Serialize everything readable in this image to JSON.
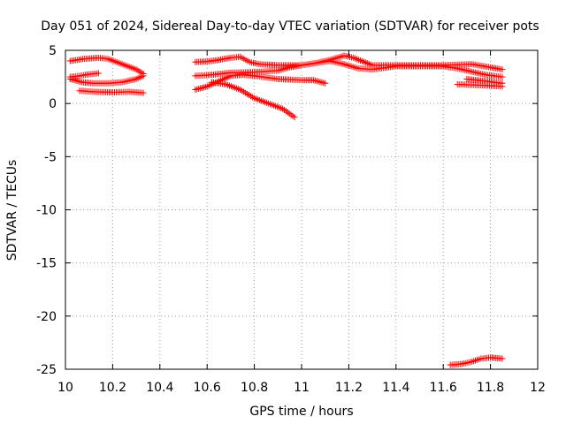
{
  "chart_data": {
    "type": "scatter",
    "title": "Day 051 of 2024, Sidereal Day-to-day VTEC variation (SDTVAR) for receiver pots",
    "xlabel": "GPS time / hours",
    "ylabel": "SDTVAR / TECUs",
    "xlim": [
      10,
      12
    ],
    "ylim": [
      -25,
      5
    ],
    "grid": true,
    "marker": "+",
    "marker_color": "#ff0000",
    "xticks": [
      "10",
      "10.2",
      "10.4",
      "10.6",
      "10.8",
      "11",
      "11.2",
      "11.4",
      "11.6",
      "11.8",
      "12"
    ],
    "yticks": [
      "5",
      "0",
      "-5",
      "-10",
      "-15",
      "-20",
      "-25"
    ],
    "series": [
      {
        "name": "s1",
        "x": [
          10.02,
          10.08,
          10.14,
          10.18,
          10.24,
          10.3,
          10.33
        ],
        "y": [
          4.0,
          4.2,
          4.3,
          4.2,
          3.7,
          3.2,
          2.8
        ]
      },
      {
        "name": "s2",
        "x": [
          10.02,
          10.07,
          10.12,
          10.18,
          10.24,
          10.3,
          10.33
        ],
        "y": [
          2.3,
          2.0,
          1.9,
          1.9,
          2.0,
          2.3,
          2.6
        ]
      },
      {
        "name": "s3",
        "x": [
          10.02,
          10.06,
          10.1,
          10.14
        ],
        "y": [
          2.5,
          2.6,
          2.75,
          2.85
        ]
      },
      {
        "name": "s4",
        "x": [
          10.06,
          10.12,
          10.2,
          10.27,
          10.33
        ],
        "y": [
          1.2,
          1.1,
          1.05,
          1.1,
          1.0
        ]
      },
      {
        "name": "s5",
        "x": [
          10.55,
          10.6,
          10.65,
          10.7,
          10.74,
          10.78,
          10.82,
          10.9,
          11.0,
          11.06,
          11.12,
          11.18,
          11.22,
          11.3,
          11.4,
          11.6,
          11.72,
          11.8,
          11.85
        ],
        "y": [
          3.9,
          3.95,
          4.1,
          4.3,
          4.4,
          3.9,
          3.7,
          3.6,
          3.6,
          3.8,
          4.1,
          4.5,
          4.3,
          3.6,
          3.6,
          3.6,
          3.7,
          3.4,
          3.2
        ]
      },
      {
        "name": "s6",
        "x": [
          10.55,
          10.62,
          10.7,
          10.8,
          10.9,
          10.95,
          11.0,
          11.06,
          11.12,
          11.18,
          11.24,
          11.3,
          11.4,
          11.6,
          11.66,
          11.72,
          11.78,
          11.85
        ],
        "y": [
          2.6,
          2.7,
          2.9,
          2.95,
          3.1,
          3.4,
          3.6,
          3.8,
          4.0,
          3.7,
          3.3,
          3.2,
          3.5,
          3.5,
          3.3,
          3.0,
          2.7,
          2.5
        ]
      },
      {
        "name": "s7",
        "x": [
          10.55,
          10.6,
          10.65,
          10.7,
          10.75,
          10.8,
          10.9,
          11.0,
          11.05,
          11.1
        ],
        "y": [
          1.3,
          1.6,
          2.1,
          2.6,
          2.7,
          2.6,
          2.3,
          2.2,
          2.2,
          1.9
        ]
      },
      {
        "name": "s8",
        "x": [
          10.62,
          10.68,
          10.74,
          10.8,
          10.86,
          10.92,
          10.97
        ],
        "y": [
          2.0,
          1.8,
          1.3,
          0.5,
          0.0,
          -0.5,
          -1.3
        ]
      },
      {
        "name": "s9",
        "x": [
          11.66,
          11.72,
          11.78,
          11.85
        ],
        "y": [
          1.8,
          1.75,
          1.7,
          1.6
        ]
      },
      {
        "name": "s10",
        "x": [
          11.7,
          11.78,
          11.85
        ],
        "y": [
          2.3,
          2.1,
          1.9
        ]
      },
      {
        "name": "s11",
        "x": [
          11.63,
          11.68,
          11.72,
          11.76,
          11.8,
          11.85
        ],
        "y": [
          -24.6,
          -24.5,
          -24.3,
          -24.0,
          -23.9,
          -24.0
        ]
      }
    ]
  }
}
